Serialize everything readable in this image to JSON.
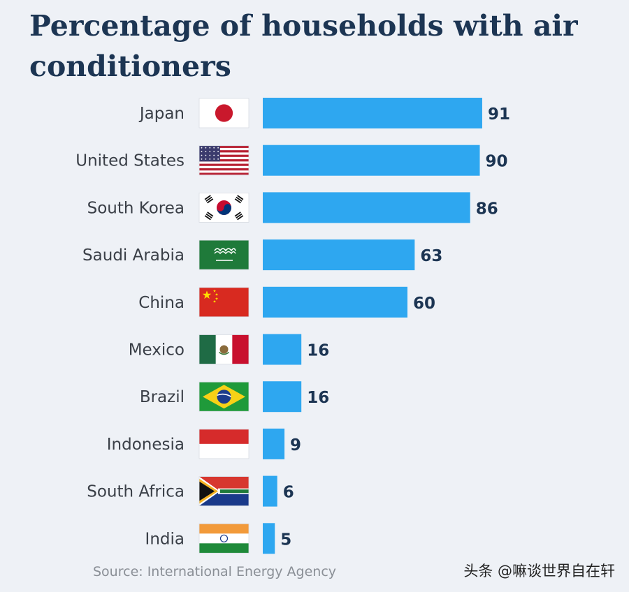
{
  "chart_data": {
    "type": "bar",
    "orientation": "horizontal",
    "title": "Percentage of households with air conditioners",
    "categories": [
      "Japan",
      "United States",
      "South Korea",
      "Saudi Arabia",
      "China",
      "Mexico",
      "Brazil",
      "Indonesia",
      "South Africa",
      "India"
    ],
    "values": [
      91,
      90,
      86,
      63,
      60,
      16,
      16,
      9,
      6,
      5
    ],
    "flags": [
      "japan-flag-icon",
      "united-states-flag-icon",
      "south-korea-flag-icon",
      "saudi-arabia-flag-icon",
      "china-flag-icon",
      "mexico-flag-icon",
      "brazil-flag-icon",
      "indonesia-flag-icon",
      "south-africa-flag-icon",
      "india-flag-icon"
    ],
    "bar_color": "#2ea7f0",
    "value_label_color": "#1c3553",
    "grid": false,
    "xlim": [
      0,
      100
    ]
  },
  "source": "Source: International Energy Agency",
  "watermark": "头条 @嘛谈世界自在轩"
}
